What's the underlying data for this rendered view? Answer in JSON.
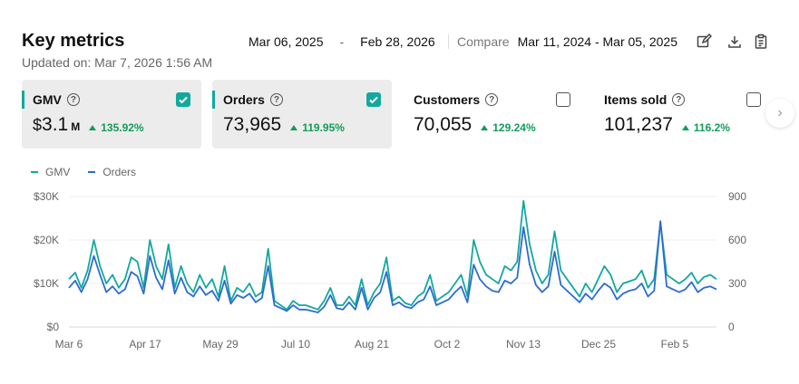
{
  "header": {
    "title": "Key metrics",
    "updated": "Updated on: Mar 7, 2026 1:56 AM",
    "date_start": "Mar 06, 2025",
    "date_sep": "-",
    "date_end": "Feb 28, 2026",
    "compare_label": "Compare",
    "compare_range": "Mar 11, 2024 - Mar 05, 2025",
    "icons": [
      "edit-icon",
      "download-icon",
      "clipboard-icon"
    ]
  },
  "cards": [
    {
      "label": "GMV",
      "currency": "$",
      "value": "3.1",
      "unit": "M",
      "delta": "135.92%",
      "checked": true,
      "active": true
    },
    {
      "label": "Orders",
      "currency": "",
      "value": "73,965",
      "unit": "",
      "delta": "119.95%",
      "checked": true,
      "active": true
    },
    {
      "label": "Customers",
      "currency": "",
      "value": "70,055",
      "unit": "",
      "delta": "129.24%",
      "checked": false,
      "active": false
    },
    {
      "label": "Items sold",
      "currency": "",
      "value": "101,237",
      "unit": "",
      "delta": "116.2%",
      "checked": false,
      "active": false
    }
  ],
  "colors": {
    "gmv": "#13a89e",
    "orders": "#2d6cd0",
    "positive": "#139c5a"
  },
  "chart_data": {
    "type": "line",
    "legend": [
      "GMV",
      "Orders"
    ],
    "legend_position": "top-left",
    "x_ticks": [
      "Mar 6",
      "Apr 17",
      "May 29",
      "Jul 10",
      "Aug 21",
      "Oct 2",
      "Nov 13",
      "Dec 25",
      "Feb 5"
    ],
    "left_axis": {
      "ticks": [
        "$30K",
        "$20K",
        "$10K",
        "$0"
      ],
      "range": [
        0,
        30000
      ]
    },
    "right_axis": {
      "ticks": [
        "900",
        "600",
        "300",
        "0"
      ],
      "range": [
        0,
        900
      ]
    },
    "grid": true,
    "series": [
      {
        "name": "GMV",
        "axis": "left",
        "interval_days": 3,
        "values": [
          11000,
          12500,
          9000,
          13000,
          20000,
          14000,
          10000,
          12000,
          9000,
          11000,
          16000,
          15000,
          9000,
          20000,
          14000,
          11000,
          19000,
          9000,
          14000,
          10000,
          8000,
          12000,
          9000,
          11000,
          7000,
          14000,
          6000,
          9000,
          8000,
          10000,
          7000,
          8000,
          18000,
          6000,
          5000,
          4000,
          6000,
          5000,
          5000,
          4500,
          4000,
          6000,
          9000,
          5000,
          5000,
          7000,
          5000,
          11000,
          5000,
          8000,
          10000,
          16000,
          6000,
          7000,
          5500,
          5000,
          7000,
          8000,
          12000,
          6000,
          7000,
          8000,
          10000,
          12000,
          7000,
          20000,
          15000,
          12000,
          11000,
          10000,
          14000,
          13000,
          15000,
          29000,
          19000,
          13000,
          10000,
          12000,
          22000,
          13000,
          11000,
          9000,
          7000,
          10000,
          8000,
          11000,
          14000,
          12000,
          8000,
          10000,
          10500,
          11000,
          13000,
          9000,
          11000,
          24000,
          12000,
          11000,
          10000,
          11000,
          12500,
          10000,
          11500,
          12000,
          11000
        ]
      },
      {
        "name": "Orders",
        "axis": "right",
        "interval_days": 3,
        "values": [
          270,
          320,
          240,
          330,
          490,
          360,
          240,
          280,
          230,
          260,
          380,
          350,
          230,
          490,
          340,
          260,
          460,
          230,
          340,
          240,
          210,
          280,
          220,
          250,
          180,
          320,
          160,
          220,
          200,
          230,
          170,
          200,
          420,
          150,
          130,
          110,
          150,
          120,
          120,
          110,
          100,
          140,
          220,
          130,
          120,
          170,
          120,
          270,
          120,
          200,
          240,
          380,
          150,
          170,
          140,
          130,
          170,
          190,
          280,
          150,
          170,
          190,
          240,
          280,
          170,
          430,
          330,
          280,
          250,
          240,
          320,
          300,
          340,
          690,
          430,
          290,
          240,
          280,
          520,
          290,
          250,
          210,
          170,
          230,
          190,
          250,
          300,
          270,
          190,
          230,
          250,
          260,
          300,
          210,
          250,
          730,
          280,
          260,
          240,
          260,
          310,
          240,
          270,
          280,
          260
        ]
      }
    ]
  }
}
